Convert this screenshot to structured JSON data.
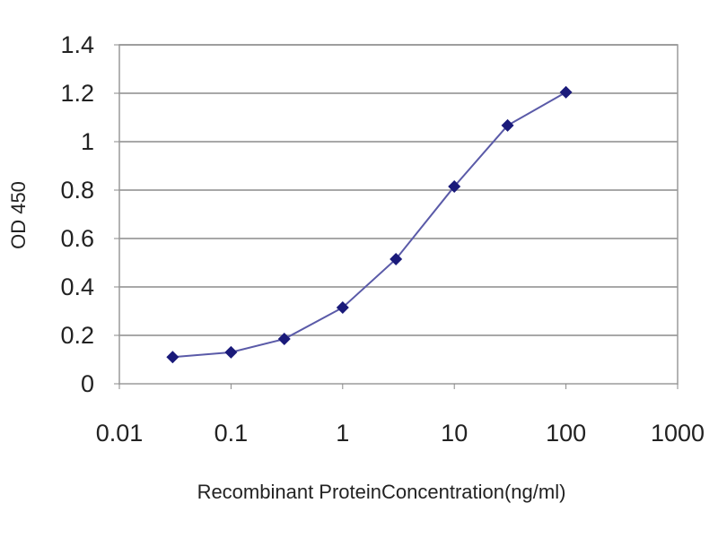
{
  "chart_data": {
    "type": "line",
    "title": "",
    "xlabel": "Recombinant ProteinConcentration(ng/ml)",
    "ylabel": "OD 450",
    "x_scale": "log",
    "xlim": [
      0.01,
      1000
    ],
    "ylim": [
      0,
      1.4
    ],
    "x_ticks": [
      "0.01",
      "0.1",
      "1",
      "10",
      "100",
      "1000"
    ],
    "y_ticks": [
      "0",
      "0.2",
      "0.4",
      "0.6",
      "0.8",
      "1",
      "1.2",
      "1.4"
    ],
    "grid": "horizontal",
    "legend": "none",
    "series": [
      {
        "x": [
          0.03,
          0.1,
          0.3,
          1,
          3,
          10,
          30,
          100
        ],
        "y": [
          0.11,
          0.13,
          0.185,
          0.315,
          0.515,
          0.815,
          1.067,
          1.204
        ],
        "color": "#1a1a7a",
        "line_color": "#5a5aa8",
        "marker": "diamond"
      }
    ]
  }
}
